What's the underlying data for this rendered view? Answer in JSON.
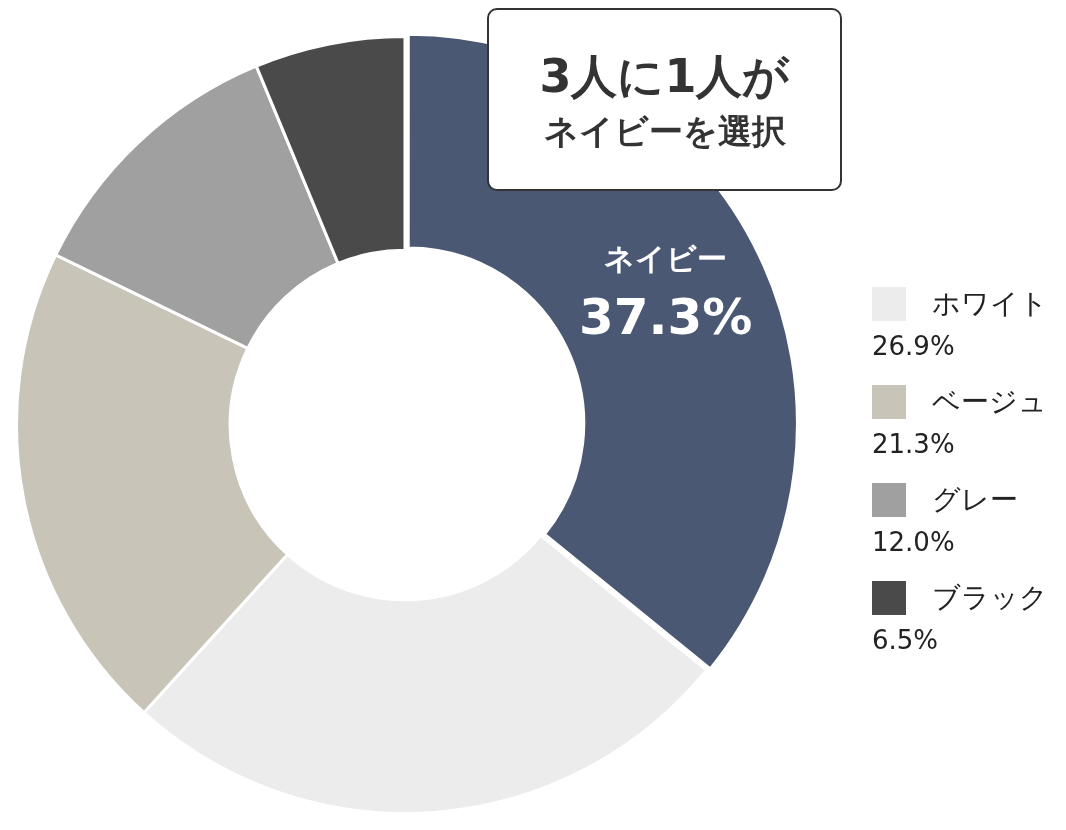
{
  "chart_data": {
    "type": "donut",
    "categories": [
      "ネイビー",
      "ホワイト",
      "ベージュ",
      "グレー",
      "ブラック"
    ],
    "values": [
      37.3,
      26.9,
      21.3,
      12.0,
      6.5
    ],
    "colors": [
      "#4a5873",
      "#ececec",
      "#c8c4b8",
      "#a0a0a0",
      "#4a4a4a"
    ],
    "value_labels": [
      "37.3%",
      "26.9%",
      "21.3%",
      "12.0%",
      "6.5%"
    ],
    "annotations": [
      "3人に1人が",
      "ネイビーを選択"
    ],
    "legend": "right"
  }
}
